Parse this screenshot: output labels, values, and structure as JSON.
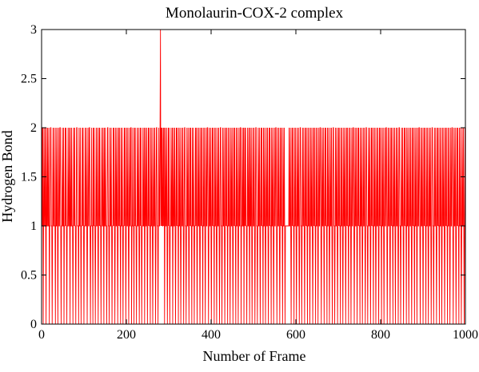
{
  "chart_data": {
    "type": "line",
    "title": "Monolaurin-COX-2 complex",
    "xlabel": "Number of Frame",
    "ylabel": "Hydrogen Bond",
    "xlim": [
      0,
      1000
    ],
    "ylim": [
      0,
      3
    ],
    "x_ticks": [
      0,
      200,
      400,
      600,
      800,
      1000
    ],
    "x_tick_labels": [
      "0",
      "200",
      "400",
      "600",
      "800",
      "1000"
    ],
    "y_ticks": [
      0,
      0.5,
      1,
      1.5,
      2,
      2.5,
      3
    ],
    "y_tick_labels": [
      "0",
      "0.5",
      "1",
      "1.5",
      "2",
      "2.5",
      "3"
    ],
    "grid": false,
    "series": [
      {
        "color": "#ff0000",
        "values": [
          1,
          2,
          1,
          2,
          0,
          1,
          2,
          1,
          1,
          2,
          1,
          0,
          2,
          1,
          1,
          2,
          1,
          1,
          2,
          0,
          1,
          1,
          2,
          2,
          1,
          1,
          0,
          1,
          2,
          1,
          1,
          2,
          1,
          1,
          0,
          2,
          1,
          1,
          2,
          1,
          0,
          1,
          2,
          1,
          1,
          2,
          2,
          1,
          0,
          1,
          1,
          2,
          1,
          1,
          2,
          0,
          1,
          1,
          2,
          1,
          2,
          1,
          0,
          1,
          1,
          2,
          1,
          1,
          2,
          1,
          0,
          2,
          1,
          1,
          2,
          1,
          1,
          0,
          1,
          2,
          1,
          2,
          1,
          1,
          0,
          1,
          2,
          2,
          1,
          1,
          1,
          0,
          2,
          1,
          1,
          2,
          1,
          0,
          1,
          1,
          2,
          1,
          2,
          1,
          0,
          1,
          1,
          2,
          1,
          1,
          2,
          1,
          0,
          1,
          2,
          1,
          1,
          2,
          2,
          1,
          0,
          1,
          1,
          2,
          1,
          1,
          0,
          2,
          1,
          2,
          1,
          1,
          0,
          1,
          2,
          1,
          1,
          2,
          1,
          0,
          1,
          2,
          1,
          2,
          1,
          1,
          0,
          1,
          2,
          1,
          1,
          2,
          1,
          0,
          2,
          1,
          1,
          2,
          1,
          1,
          0,
          1,
          2,
          2,
          1,
          1,
          0,
          1,
          2,
          1,
          1,
          2,
          1,
          0,
          1,
          1,
          2,
          1,
          2,
          1,
          0,
          1,
          2,
          1,
          1,
          2,
          1,
          0,
          1,
          2,
          1,
          2,
          1,
          1,
          0,
          2,
          1,
          1,
          2,
          1,
          0,
          1,
          1,
          2,
          1,
          2,
          1,
          0,
          1,
          2,
          1,
          1,
          2,
          1,
          0,
          1,
          2,
          1,
          1,
          2,
          2,
          0,
          1,
          1,
          2,
          1,
          1,
          0,
          2,
          1,
          2,
          1,
          1,
          0,
          1,
          2,
          1,
          1,
          2,
          1,
          0,
          1,
          2,
          1,
          2,
          1,
          0,
          1,
          1,
          2,
          1,
          1,
          2,
          0,
          1,
          2,
          1,
          1,
          2,
          1,
          0,
          1,
          2,
          1,
          2,
          1,
          1,
          0,
          2,
          1,
          1,
          2,
          1,
          0,
          1,
          2,
          1,
          1,
          2,
          1,
          0,
          1,
          2,
          2,
          1,
          1,
          0,
          1,
          2,
          1,
          1,
          2,
          3,
          1,
          2,
          1,
          2,
          1,
          1,
          2,
          1,
          2,
          0,
          1,
          2,
          1,
          1,
          2,
          1,
          0,
          1,
          2,
          1,
          2,
          1,
          0,
          1,
          1,
          2,
          1,
          1,
          2,
          0,
          1,
          2,
          1,
          1,
          2,
          1,
          0,
          1,
          2,
          1,
          2,
          1,
          1,
          0,
          2,
          1,
          1,
          2,
          1,
          0,
          1,
          2,
          1,
          1,
          2,
          1,
          0,
          1,
          2,
          2,
          1,
          1,
          0,
          1,
          2,
          1,
          1,
          2,
          1,
          0,
          1,
          2,
          1,
          2,
          1,
          1,
          0,
          2,
          1,
          1,
          2,
          1,
          0,
          1,
          1,
          2,
          1,
          2,
          1,
          0,
          1,
          2,
          1,
          1,
          2,
          1,
          0,
          1,
          2,
          1,
          2,
          1,
          1,
          0,
          2,
          1,
          1,
          2,
          1,
          0,
          1,
          2,
          1,
          1,
          2,
          2,
          1,
          0,
          1,
          2,
          1,
          1,
          2,
          1,
          0,
          1,
          2,
          1,
          2,
          1,
          1,
          0,
          2,
          1,
          1,
          2,
          1,
          0,
          1,
          2,
          1,
          1,
          2,
          1,
          0,
          1,
          2,
          2,
          1,
          1,
          0,
          1,
          2,
          1,
          1,
          2,
          1,
          0,
          1,
          2,
          1,
          2,
          1,
          1,
          0,
          2,
          1,
          1,
          2,
          1,
          0,
          1,
          2,
          1,
          1,
          2,
          1,
          0,
          1,
          2,
          1,
          2,
          1,
          1,
          0,
          2,
          1,
          1,
          2,
          1,
          0,
          1,
          2,
          1,
          1,
          2,
          2,
          0,
          1,
          1,
          2,
          1,
          1,
          2,
          0,
          1,
          2,
          1,
          2,
          1,
          1,
          0,
          1,
          2,
          1,
          1,
          2,
          1,
          0,
          2,
          1,
          1,
          2,
          1,
          0,
          1,
          2,
          1,
          1,
          2,
          1,
          0,
          1,
          2,
          2,
          1,
          1,
          0,
          1,
          2,
          1,
          1,
          2,
          1,
          0,
          1,
          2,
          1,
          2,
          1,
          1,
          0,
          2,
          1,
          1,
          2,
          1,
          0,
          1,
          2,
          1,
          1,
          2,
          1,
          0,
          1,
          2,
          1,
          2,
          1,
          1,
          0,
          2,
          1,
          1,
          2,
          1,
          0,
          1,
          2,
          1,
          1,
          2,
          2,
          1,
          0,
          1,
          2,
          1,
          1,
          2,
          1,
          0,
          1,
          2,
          1,
          2,
          1,
          1,
          0,
          2,
          1,
          1,
          2,
          1,
          0,
          1,
          1,
          1,
          1,
          1,
          1,
          1,
          1,
          1,
          2,
          1,
          1,
          2,
          1,
          0,
          1,
          2,
          1,
          2,
          1,
          1,
          0,
          2,
          1,
          1,
          2,
          1,
          0,
          1,
          2,
          1,
          1,
          2,
          1,
          0,
          1,
          2,
          2,
          1,
          1,
          0,
          1,
          2,
          1,
          1,
          2,
          1,
          0,
          1,
          2,
          1,
          2,
          1,
          1,
          0,
          2,
          1,
          1,
          2,
          1,
          0,
          1,
          2,
          1,
          1,
          2,
          1,
          0,
          1,
          2,
          1,
          2,
          1,
          1,
          0,
          2,
          1,
          1,
          2,
          1,
          0,
          1,
          2,
          1,
          1,
          2,
          2,
          1,
          0,
          1,
          2,
          1,
          1,
          2,
          1,
          0,
          1,
          2,
          1,
          2,
          1,
          1,
          0,
          2,
          1,
          1,
          2,
          1,
          0,
          1,
          2,
          1,
          1,
          2,
          1,
          0,
          1,
          2,
          2,
          1,
          1,
          0,
          1,
          2,
          1,
          1,
          2,
          1,
          0,
          1,
          2,
          1,
          2,
          1,
          1,
          0,
          2,
          1,
          1,
          2,
          1,
          0,
          1,
          2,
          1,
          1,
          2,
          1,
          0,
          1,
          2,
          1,
          2,
          1,
          1,
          0,
          2,
          1,
          1,
          2,
          1,
          0,
          1,
          2,
          1,
          1,
          2,
          2,
          1,
          0,
          1,
          2,
          1,
          1,
          2,
          1,
          0,
          1,
          2,
          1,
          2,
          1,
          1,
          0,
          2,
          1,
          1,
          2,
          1,
          0,
          1,
          2,
          1,
          1,
          2,
          1,
          0,
          1,
          2,
          2,
          1,
          1,
          0,
          1,
          2,
          1,
          1,
          2,
          1,
          0,
          1,
          2,
          1,
          2,
          1,
          1,
          0,
          2,
          1,
          1,
          2,
          1,
          0,
          1,
          2,
          1,
          1,
          2,
          1,
          0,
          1,
          2,
          1,
          2,
          1,
          1,
          0,
          2,
          1,
          1,
          2,
          1,
          0,
          1,
          2,
          1,
          1,
          2,
          2,
          1,
          0,
          1,
          2,
          1,
          1,
          2,
          1,
          0,
          1,
          2,
          1,
          2,
          1,
          1,
          0,
          2,
          1,
          1,
          2,
          1,
          0,
          1,
          2,
          1,
          1,
          2,
          1,
          0,
          1,
          2,
          2,
          1,
          1,
          0,
          1,
          2,
          1,
          1,
          2,
          1,
          0,
          1,
          2,
          1,
          2,
          1,
          1,
          0,
          2,
          1,
          1,
          2,
          1,
          0,
          1,
          2,
          1,
          1,
          2,
          1,
          0,
          1,
          2,
          1,
          2,
          1,
          1,
          0,
          2,
          1,
          1,
          2,
          1,
          0,
          1,
          2,
          1,
          1,
          2,
          2,
          1,
          0,
          1,
          2,
          1,
          1,
          2,
          1,
          0,
          1,
          2,
          1,
          2,
          1,
          1,
          0,
          2,
          1,
          1,
          2,
          1,
          0,
          1,
          2,
          1,
          1,
          2,
          1,
          0,
          1,
          2,
          2,
          1,
          1,
          0,
          1,
          2,
          1,
          1,
          2,
          1,
          0,
          1,
          2,
          1,
          2,
          1,
          1,
          0,
          2,
          1,
          1,
          2,
          1,
          0,
          1,
          2,
          1,
          1,
          2,
          1,
          0,
          1,
          2,
          1,
          2,
          1,
          1,
          0,
          2,
          1,
          1,
          2,
          1,
          0,
          1,
          2,
          1,
          1,
          2,
          2,
          1,
          0,
          1,
          2,
          1,
          1,
          2,
          1,
          0,
          1,
          2,
          1,
          2,
          1,
          1,
          0,
          2,
          1,
          1,
          2,
          1,
          0,
          1,
          2,
          1,
          1,
          2,
          1,
          0,
          1,
          2,
          1
        ]
      }
    ]
  }
}
